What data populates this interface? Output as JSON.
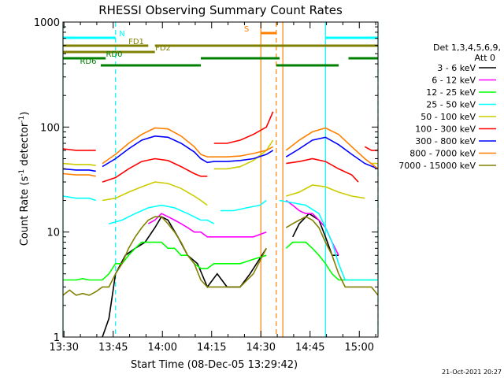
{
  "chart_data": {
    "type": "line",
    "title": "RHESSI Observing Summary Count Rates",
    "xlabel": "Start Time (08-Dec-05 13:29:42)",
    "ylabel_main": "Count Rate (s",
    "ylabel_sup1": "-1",
    "ylabel_mid": " detector",
    "ylabel_sup2": "-1",
    "ylabel_end": ")",
    "x_unit": "minutes since 13:29:42",
    "xlim": [
      0,
      96
    ],
    "ylim": [
      1,
      1000
    ],
    "yscale": "log",
    "x_ticks": [
      {
        "t": 0.3,
        "label": "13:30"
      },
      {
        "t": 15.3,
        "label": "13:45"
      },
      {
        "t": 30.3,
        "label": "14:00"
      },
      {
        "t": 45.3,
        "label": "14:15"
      },
      {
        "t": 60.3,
        "label": "14:30"
      },
      {
        "t": 75.3,
        "label": "14:45"
      },
      {
        "t": 90.3,
        "label": "15:00"
      }
    ],
    "y_ticks": [
      {
        "v": 1,
        "label": "1"
      },
      {
        "v": 10,
        "label": "10"
      },
      {
        "v": 100,
        "label": "100"
      },
      {
        "v": 1000,
        "label": "1000"
      }
    ],
    "legend_header": [
      "Det 1,3,4,5,6,9,",
      "Att 0"
    ],
    "legend_position": "right",
    "footer_date": "21-Oct-2021 20:27",
    "series": [
      {
        "name": "3 - 6 keV",
        "color": "#000000",
        "points": [
          [
            12,
            1
          ],
          [
            14,
            1.5
          ],
          [
            16,
            4
          ],
          [
            19,
            6
          ],
          [
            22,
            7
          ],
          [
            25,
            8
          ],
          [
            28,
            11
          ],
          [
            30,
            14
          ],
          [
            32,
            13
          ],
          [
            35,
            9
          ],
          [
            38,
            6
          ],
          [
            41,
            5
          ],
          [
            44,
            3
          ],
          [
            47,
            4
          ],
          [
            50,
            3
          ],
          [
            54,
            3
          ],
          [
            57,
            4
          ],
          [
            59,
            5
          ],
          [
            62,
            7
          ],
          null,
          [
            70,
            9
          ],
          [
            72,
            12
          ],
          [
            75,
            15
          ],
          [
            78,
            13
          ],
          [
            80,
            9
          ],
          [
            82,
            6
          ],
          [
            84,
            6
          ]
        ]
      },
      {
        "name": "6 - 12 keV",
        "color": "#ff00ff",
        "points": [
          [
            26,
            12
          ],
          [
            28,
            13
          ],
          [
            30,
            15
          ],
          [
            32,
            14
          ],
          [
            34,
            13
          ],
          [
            36,
            12
          ],
          [
            38,
            11
          ],
          [
            40,
            10
          ],
          [
            42,
            10
          ],
          [
            44,
            9
          ],
          [
            46,
            9
          ],
          [
            50,
            9
          ],
          [
            54,
            9
          ],
          [
            58,
            9
          ],
          [
            62,
            10
          ],
          null,
          [
            68,
            20
          ],
          [
            70,
            18
          ],
          [
            72,
            16
          ],
          [
            74,
            15
          ],
          [
            76,
            15
          ],
          [
            78,
            13
          ],
          [
            80,
            11
          ],
          [
            82,
            8
          ],
          [
            84,
            6
          ]
        ]
      },
      {
        "name": "12 - 25 keV",
        "color": "#00ff00",
        "points": [
          [
            0,
            3.5
          ],
          [
            2,
            3.5
          ],
          [
            4,
            3.5
          ],
          [
            6,
            3.6
          ],
          [
            8,
            3.5
          ],
          [
            10,
            3.5
          ],
          [
            12,
            3.5
          ],
          [
            14,
            4
          ],
          [
            16,
            5
          ],
          [
            18,
            5
          ],
          [
            20,
            6
          ],
          [
            22,
            7
          ],
          [
            24,
            8
          ],
          [
            26,
            8
          ],
          [
            28,
            8
          ],
          [
            30,
            8
          ],
          [
            32,
            7
          ],
          [
            34,
            7
          ],
          [
            36,
            6
          ],
          [
            38,
            6
          ],
          [
            40,
            5
          ],
          [
            42,
            4.5
          ],
          [
            44,
            4.5
          ],
          [
            46,
            5
          ],
          [
            50,
            5
          ],
          [
            54,
            5
          ],
          [
            58,
            5.5
          ],
          [
            62,
            6
          ],
          null,
          [
            68,
            7
          ],
          [
            70,
            8
          ],
          [
            72,
            8
          ],
          [
            74,
            8
          ],
          [
            76,
            7
          ],
          [
            78,
            6
          ],
          [
            80,
            5
          ],
          [
            82,
            4
          ],
          [
            84,
            3.5
          ],
          [
            88,
            3.5
          ],
          [
            92,
            3.5
          ],
          [
            96,
            3.5
          ]
        ]
      },
      {
        "name": "25 - 50 keV",
        "color": "#00ffff",
        "points": [
          [
            0,
            22
          ],
          [
            4,
            21
          ],
          [
            8,
            21
          ],
          [
            10,
            20
          ],
          null,
          [
            14,
            12
          ],
          [
            18,
            13
          ],
          [
            22,
            15
          ],
          [
            26,
            17
          ],
          [
            30,
            18
          ],
          [
            34,
            17
          ],
          [
            38,
            15
          ],
          [
            42,
            13
          ],
          [
            44,
            13
          ],
          [
            46,
            12
          ],
          null,
          [
            48,
            16
          ],
          [
            52,
            16
          ],
          [
            56,
            17
          ],
          [
            60,
            18
          ],
          [
            62,
            20
          ],
          null,
          [
            66,
            20
          ],
          [
            70,
            19
          ],
          [
            74,
            18
          ],
          [
            78,
            15
          ],
          [
            80,
            11
          ],
          [
            82,
            8
          ],
          [
            84,
            5
          ],
          [
            86,
            3.5
          ],
          [
            88,
            3.5
          ],
          [
            92,
            3.5
          ],
          [
            96,
            3.5
          ]
        ]
      },
      {
        "name": "50 - 100 keV",
        "color": "#cccc00",
        "points": [
          [
            0,
            45
          ],
          [
            4,
            44
          ],
          [
            8,
            44
          ],
          [
            10,
            43
          ],
          null,
          [
            12,
            20
          ],
          [
            16,
            21
          ],
          [
            20,
            24
          ],
          [
            24,
            27
          ],
          [
            28,
            30
          ],
          [
            32,
            29
          ],
          [
            36,
            26
          ],
          [
            40,
            22
          ],
          [
            42,
            20
          ],
          [
            44,
            18
          ],
          null,
          [
            46,
            40
          ],
          [
            50,
            40
          ],
          [
            54,
            42
          ],
          [
            58,
            48
          ],
          [
            62,
            60
          ],
          [
            64,
            75
          ],
          null,
          [
            68,
            22
          ],
          [
            72,
            24
          ],
          [
            76,
            28
          ],
          [
            80,
            27
          ],
          [
            84,
            24
          ],
          [
            88,
            22
          ],
          [
            92,
            21
          ],
          null,
          [
            94,
            45
          ],
          [
            96,
            45
          ]
        ]
      },
      {
        "name": "100 - 300 keV",
        "color": "#ff0000",
        "points": [
          [
            0,
            62
          ],
          [
            4,
            60
          ],
          [
            8,
            60
          ],
          [
            10,
            60
          ],
          null,
          [
            12,
            30
          ],
          [
            16,
            33
          ],
          [
            20,
            40
          ],
          [
            24,
            47
          ],
          [
            28,
            50
          ],
          [
            32,
            48
          ],
          [
            36,
            42
          ],
          [
            40,
            36
          ],
          [
            42,
            34
          ],
          [
            44,
            34
          ],
          null,
          [
            46,
            70
          ],
          [
            50,
            70
          ],
          [
            54,
            75
          ],
          [
            58,
            85
          ],
          [
            62,
            100
          ],
          [
            64,
            140
          ],
          null,
          [
            68,
            45
          ],
          [
            72,
            47
          ],
          [
            76,
            50
          ],
          [
            80,
            47
          ],
          [
            84,
            40
          ],
          [
            88,
            35
          ],
          [
            90,
            30
          ],
          null,
          [
            92,
            65
          ],
          [
            94,
            60
          ],
          [
            96,
            60
          ]
        ]
      },
      {
        "name": "300 - 800 keV",
        "color": "#0000ff",
        "points": [
          [
            0,
            40
          ],
          [
            4,
            39
          ],
          [
            8,
            39
          ],
          [
            10,
            38
          ],
          null,
          [
            12,
            42
          ],
          [
            16,
            50
          ],
          [
            20,
            62
          ],
          [
            24,
            75
          ],
          [
            28,
            82
          ],
          [
            32,
            80
          ],
          [
            36,
            70
          ],
          [
            40,
            58
          ],
          [
            42,
            50
          ],
          [
            44,
            46
          ],
          [
            46,
            47
          ],
          [
            50,
            47
          ],
          [
            54,
            48
          ],
          [
            58,
            50
          ],
          [
            62,
            55
          ],
          [
            64,
            60
          ],
          null,
          [
            68,
            52
          ],
          [
            72,
            62
          ],
          [
            76,
            75
          ],
          [
            80,
            80
          ],
          [
            84,
            68
          ],
          [
            88,
            55
          ],
          [
            92,
            45
          ],
          [
            96,
            40
          ]
        ]
      },
      {
        "name": "800 - 7000 keV",
        "color": "#ff8000",
        "points": [
          [
            0,
            36
          ],
          [
            4,
            35
          ],
          [
            8,
            35
          ],
          [
            10,
            34
          ],
          null,
          [
            12,
            45
          ],
          [
            16,
            55
          ],
          [
            20,
            70
          ],
          [
            24,
            85
          ],
          [
            28,
            98
          ],
          [
            32,
            96
          ],
          [
            36,
            82
          ],
          [
            40,
            65
          ],
          [
            42,
            55
          ],
          [
            44,
            52
          ],
          [
            46,
            52
          ],
          [
            50,
            52
          ],
          [
            54,
            53
          ],
          [
            58,
            56
          ],
          [
            62,
            60
          ],
          [
            64,
            65
          ],
          null,
          [
            68,
            60
          ],
          [
            72,
            75
          ],
          [
            76,
            90
          ],
          [
            80,
            98
          ],
          [
            84,
            85
          ],
          [
            88,
            65
          ],
          [
            92,
            50
          ],
          [
            96,
            40
          ]
        ]
      },
      {
        "name": "7000 - 15000 keV",
        "color": "#808000",
        "points": [
          [
            0,
            2.5
          ],
          [
            2,
            2.8
          ],
          [
            4,
            2.5
          ],
          [
            6,
            2.6
          ],
          [
            8,
            2.5
          ],
          [
            10,
            2.7
          ],
          [
            12,
            3
          ],
          [
            14,
            3
          ],
          [
            16,
            4
          ],
          [
            18,
            5
          ],
          [
            20,
            7
          ],
          [
            22,
            9
          ],
          [
            24,
            11
          ],
          [
            26,
            13
          ],
          [
            28,
            14
          ],
          [
            30,
            14
          ],
          [
            32,
            12
          ],
          [
            34,
            10
          ],
          [
            36,
            8
          ],
          [
            38,
            6
          ],
          [
            40,
            5
          ],
          [
            42,
            3.5
          ],
          [
            44,
            3
          ],
          [
            46,
            3
          ],
          [
            50,
            3
          ],
          [
            54,
            3
          ],
          [
            58,
            4
          ],
          [
            62,
            7
          ],
          null,
          [
            68,
            11
          ],
          [
            70,
            12
          ],
          [
            72,
            13
          ],
          [
            74,
            14
          ],
          [
            76,
            13
          ],
          [
            78,
            11
          ],
          [
            80,
            8
          ],
          [
            82,
            6
          ],
          [
            84,
            4
          ],
          [
            86,
            3
          ],
          [
            90,
            3
          ],
          [
            94,
            3
          ],
          [
            96,
            2.5
          ]
        ]
      }
    ],
    "flags": [
      {
        "label": "N",
        "color": "#00ffff",
        "style": "solid",
        "segments": [
          [
            0,
            16
          ],
          [
            80,
            96
          ]
        ]
      },
      {
        "label": "S",
        "color": "#ff8000",
        "style": "solid",
        "segments": [
          [
            60.3,
            65
          ]
        ]
      },
      {
        "label": "FD1",
        "color": "#808000",
        "style": "solid",
        "segments": [
          [
            0,
            26
          ],
          [
            28,
            96
          ]
        ]
      },
      {
        "label": "FD2",
        "color": "#808000",
        "style": "solid",
        "segments": [
          [
            0,
            28
          ]
        ]
      },
      {
        "label": "RD0",
        "color": "#008000",
        "style": "solid",
        "segments": [
          [
            0,
            13
          ],
          [
            42,
            66
          ],
          [
            87,
            96
          ]
        ]
      },
      {
        "label": "RD6",
        "color": "#008000",
        "style": "solid",
        "segments": [
          [
            11.5,
            42
          ],
          [
            65,
            84
          ]
        ]
      }
    ],
    "vlines": [
      {
        "t": 0,
        "color": "#00ffff",
        "style": "solid"
      },
      {
        "t": 16,
        "color": "#00ffff",
        "style": "dashed"
      },
      {
        "t": 80,
        "color": "#00ffff",
        "style": "solid"
      },
      {
        "t": 96,
        "color": "#00ffff",
        "style": "dashed"
      },
      {
        "t": 60.3,
        "color": "#ff8000",
        "style": "solid"
      },
      {
        "t": 65,
        "color": "#ff8000",
        "style": "dashed"
      },
      {
        "t": 67,
        "color": "#ff8000",
        "style": "solid"
      }
    ]
  }
}
